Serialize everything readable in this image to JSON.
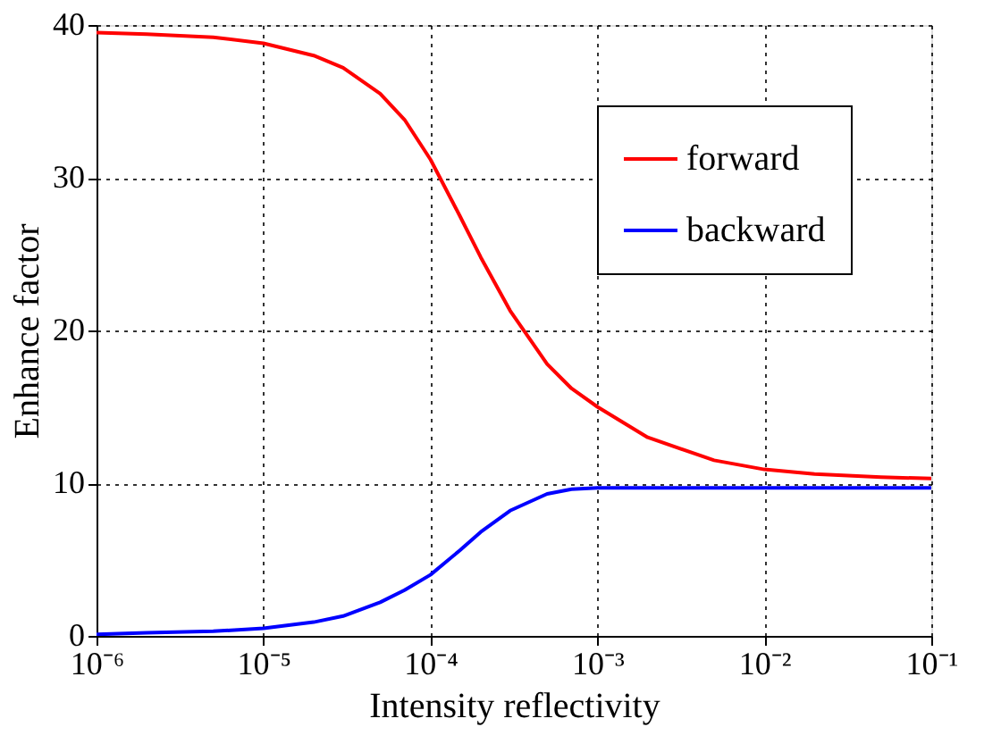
{
  "chart_data": {
    "type": "line",
    "xlabel": "Intensity reflectivity",
    "ylabel": "Enhance factor",
    "x": [
      1e-06,
      2e-06,
      5e-06,
      1e-05,
      2e-05,
      3e-05,
      5e-05,
      7e-05,
      0.0001,
      0.00015,
      0.0002,
      0.0003,
      0.0005,
      0.0007,
      0.001,
      0.002,
      0.005,
      0.01,
      0.02,
      0.05,
      0.1
    ],
    "series": [
      {
        "name": "forward",
        "color": "#ff0000",
        "values": [
          39.5,
          39.4,
          39.2,
          38.8,
          38.0,
          37.2,
          35.5,
          33.8,
          31.2,
          27.5,
          24.8,
          21.3,
          17.8,
          16.2,
          15.0,
          13.0,
          11.5,
          10.9,
          10.6,
          10.4,
          10.3
        ]
      },
      {
        "name": "backward",
        "color": "#0000ff",
        "values": [
          0.1,
          0.2,
          0.3,
          0.5,
          0.9,
          1.3,
          2.2,
          3.0,
          4.0,
          5.6,
          6.8,
          8.2,
          9.3,
          9.6,
          9.7,
          9.7,
          9.7,
          9.7,
          9.7,
          9.7,
          9.7
        ]
      }
    ],
    "log": "x",
    "xlim": [
      1e-06,
      0.1
    ],
    "xticks": [
      {
        "value": 1e-06,
        "label": "10⁻⁶"
      },
      {
        "value": 1e-05,
        "label": "10⁻⁵"
      },
      {
        "value": 0.0001,
        "label": "10⁻⁴"
      },
      {
        "value": 0.001,
        "label": "10⁻³"
      },
      {
        "value": 0.01,
        "label": "10⁻²"
      },
      {
        "value": 0.1,
        "label": "10⁻¹"
      }
    ],
    "ylim": [
      0,
      40
    ],
    "yticks": [
      0,
      10,
      20,
      30,
      40
    ],
    "grid": true,
    "legend": "top right",
    "line_style": "solid",
    "marker": "none"
  }
}
